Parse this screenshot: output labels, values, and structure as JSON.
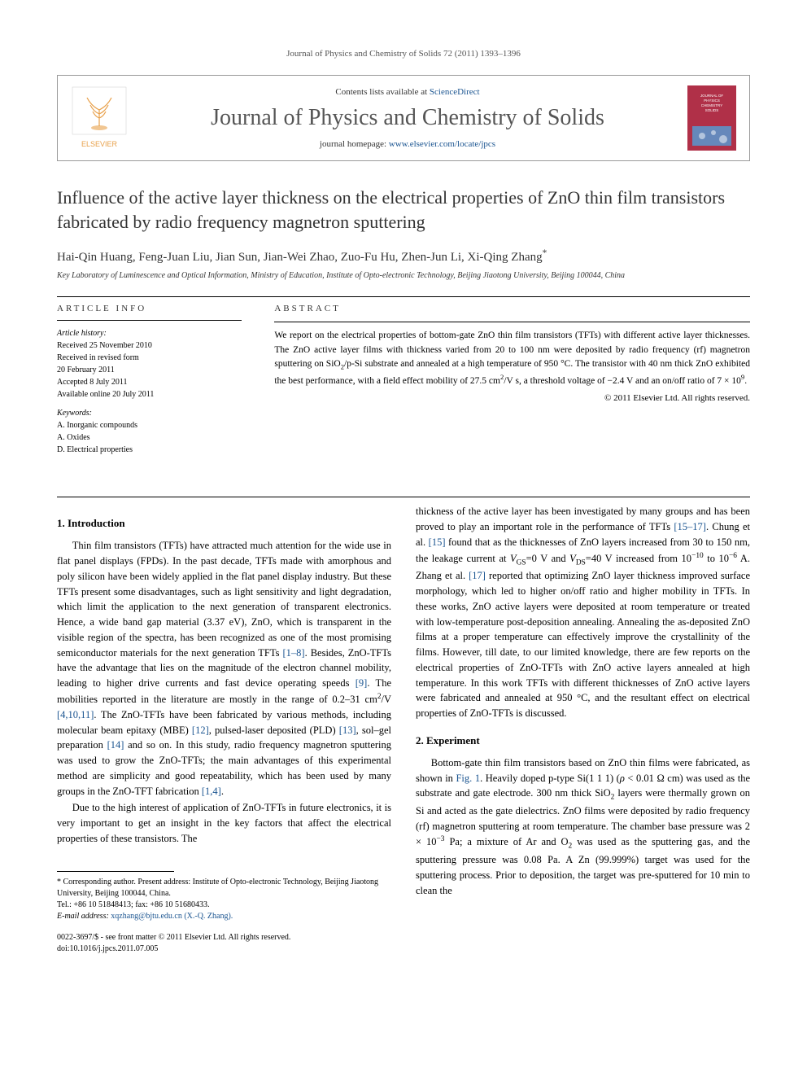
{
  "running_header": "Journal of Physics and Chemistry of Solids 72 (2011) 1393–1396",
  "masthead": {
    "contents_prefix": "Contents lists available at ",
    "contents_link": "ScienceDirect",
    "journal_title": "Journal of Physics and Chemistry of Solids",
    "homepage_prefix": "journal homepage: ",
    "homepage_link": "www.elsevier.com/locate/jpcs",
    "elsevier_label": "ELSEVIER",
    "logo_tree_color": "#e8a04a",
    "logo_text_color": "#e8a04a",
    "cover_bg": "#b03048",
    "cover_accent": "#6688bb"
  },
  "article": {
    "title": "Influence of the active layer thickness on the electrical properties of ZnO thin film transistors fabricated by radio frequency magnetron sputtering",
    "authors": "Hai-Qin Huang, Feng-Juan Liu, Jian Sun, Jian-Wei Zhao, Zuo-Fu Hu, Zhen-Jun Li, Xi-Qing Zhang",
    "corr_mark": "*",
    "affiliation": "Key Laboratory of Luminescence and Optical Information, Ministry of Education, Institute of Opto-electronic Technology, Beijing Jiaotong University, Beijing 100044, China"
  },
  "info": {
    "heading": "ARTICLE INFO",
    "history_label": "Article history:",
    "received": "Received 25 November 2010",
    "revised": "Received in revised form",
    "revised_date": "20 February 2011",
    "accepted": "Accepted 8 July 2011",
    "online": "Available online 20 July 2011",
    "keywords_label": "Keywords:",
    "kw1": "A. Inorganic compounds",
    "kw2": "A. Oxides",
    "kw3": "D. Electrical properties"
  },
  "abstract": {
    "heading": "ABSTRACT",
    "text_html": "We report on the electrical properties of bottom-gate ZnO thin film transistors (TFTs) with different active layer thicknesses. The ZnO active layer films with thickness varied from 20 to 100 nm were deposited by radio frequency (rf) magnetron sputtering on SiO<sub>2</sub>/p-Si substrate and annealed at a high temperature of 950 °C. The transistor with 40 nm thick ZnO exhibited the best performance, with a field effect mobility of 27.5 cm<sup>2</sup>/V s, a threshold voltage of −2.4 V and an on/off ratio of 7 × 10<sup>9</sup>.",
    "copyright": "© 2011 Elsevier Ltd. All rights reserved."
  },
  "sections": {
    "intro_heading": "1.  Introduction",
    "intro_p1_html": "Thin film transistors (TFTs) have attracted much attention for the wide use in flat panel displays (FPDs). In the past decade, TFTs made with amorphous and poly silicon have been widely applied in the flat panel display industry. But these TFTs present some disadvantages, such as light sensitivity and light degradation, which limit the application to the next generation of transparent electronics. Hence, a wide band gap material (3.37 eV), ZnO, which is transparent in the visible region of the spectra, has been recognized as one of the most promising semiconductor materials for the next generation TFTs <span class=\"cite\">[1–8]</span>. Besides, ZnO-TFTs have the advantage that lies on the magnitude of the electron channel mobility, leading to higher drive currents and fast device operating speeds <span class=\"cite\">[9]</span>. The mobilities reported in the literature are mostly in the range of 0.2–31 cm<sup>2</sup>/V <span class=\"cite\">[4,10,11]</span>. The ZnO-TFTs have been fabricated by various methods, including molecular beam epitaxy (MBE) <span class=\"cite\">[12]</span>, pulsed-laser deposited (PLD) <span class=\"cite\">[13]</span>, sol–gel preparation <span class=\"cite\">[14]</span> and so on. In this study, radio frequency magnetron sputtering was used to grow the ZnO-TFTs; the main advantages of this experimental method are simplicity and good repeatability, which has been used by many groups in the ZnO-TFT fabrication <span class=\"cite\">[1,4]</span>.",
    "intro_p2_html": "Due to the high interest of application of ZnO-TFTs in future electronics, it is very important to get an insight in the key factors that affect the electrical properties of these transistors. The",
    "intro_p3_html": "thickness of the active layer has been investigated by many groups and has been proved to play an important role in the performance of TFTs <span class=\"cite\">[15–17]</span>. Chung et al. <span class=\"cite\">[15]</span> found that as the thicknesses of ZnO layers increased from 30 to 150 nm, the leakage current at <i>V</i><sub>GS</sub>=0 V and <i>V</i><sub>DS</sub>=40 V increased from 10<sup>−10</sup> to 10<sup>−6</sup> A. Zhang et al. <span class=\"cite\">[17]</span> reported that optimizing ZnO layer thickness improved surface morphology, which led to higher on/off ratio and higher mobility in TFTs. In these works, ZnO active layers were deposited at room temperature or treated with low-temperature post-deposition annealing. Annealing the as-deposited ZnO films at a proper temperature can effectively improve the crystallinity of the films. However, till date, to our limited knowledge, there are few reports on the electrical properties of ZnO-TFTs with ZnO active layers annealed at high temperature. In this work TFTs with different thicknesses of ZnO active layers were fabricated and annealed at 950 °C, and the resultant effect on electrical properties of ZnO-TFTs is discussed.",
    "exp_heading": "2.  Experiment",
    "exp_p1_html": "Bottom-gate thin film transistors based on ZnO thin films were fabricated, as shown in <span class=\"cite\">Fig. 1</span>. Heavily doped p-type Si(1 1 1) (<i>ρ</i> < 0.01 Ω cm) was used as the substrate and gate electrode. 300 nm thick SiO<sub>2</sub> layers were thermally grown on Si and acted as the gate dielectrics. ZnO films were deposited by radio frequency (rf) magnetron sputtering at room temperature. The chamber base pressure was 2 × 10<sup>−3</sup> Pa; a mixture of Ar and O<sub>2</sub> was used as the sputtering gas, and the sputtering pressure was 0.08 Pa. A Zn (99.999%) target was used for the sputtering process. Prior to deposition, the target was pre-sputtered for 10 min to clean the"
  },
  "footnote": {
    "corr_html": "* Corresponding author. Present address: Institute of Opto-electronic Technology, Beijing Jiaotong University, Beijing 100044, China.",
    "tel": "Tel.: +86 10 51848413; fax: +86 10 51680433.",
    "email_label": "E-mail address:",
    "email": "xqzhang@bjtu.edu.cn (X.-Q. Zhang).",
    "issn_line": "0022-3697/$ - see front matter © 2011 Elsevier Ltd. All rights reserved.",
    "doi": "doi:10.1016/j.jpcs.2011.07.005"
  },
  "colors": {
    "link": "#1a5490",
    "text": "#000000",
    "muted": "#555555",
    "rule": "#000000"
  }
}
